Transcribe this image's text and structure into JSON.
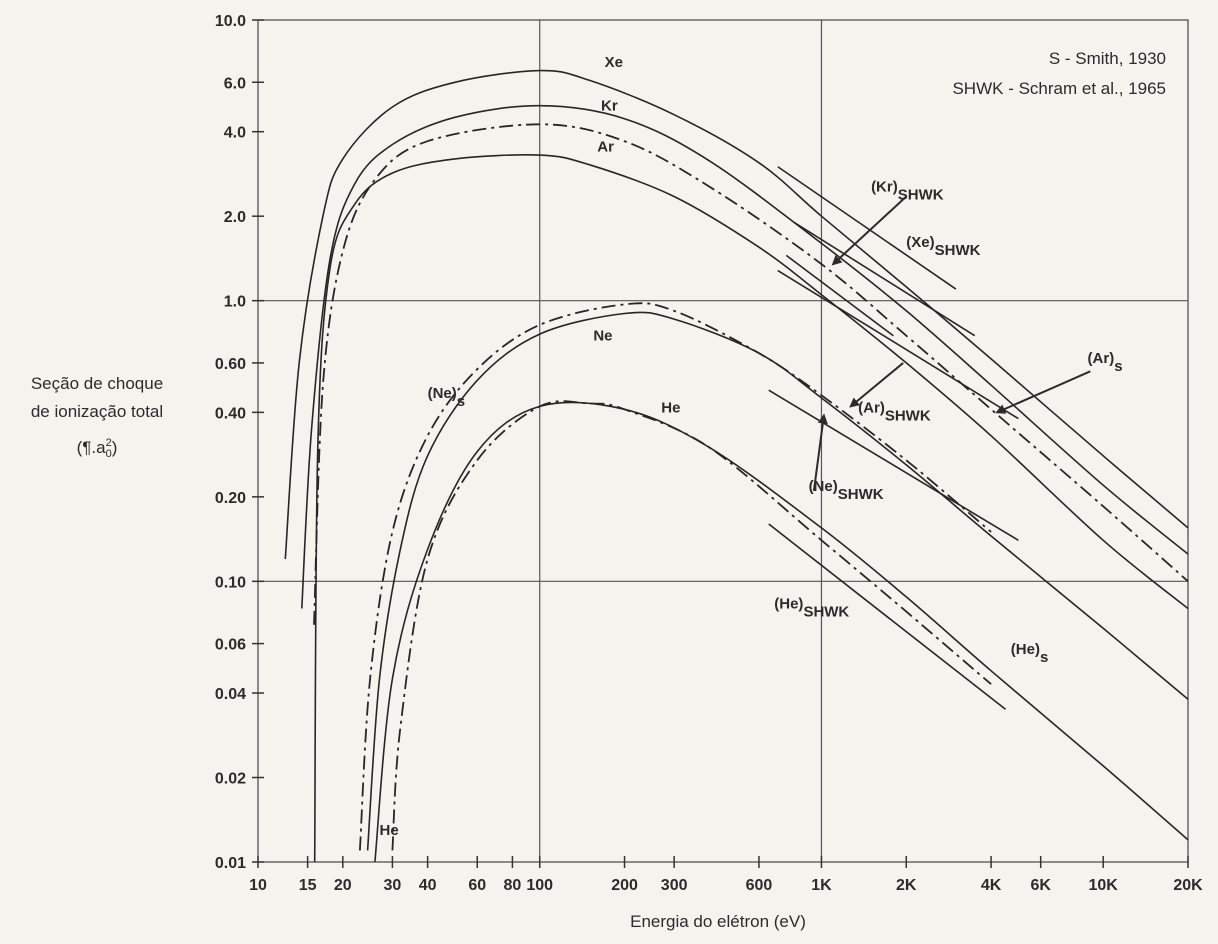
{
  "chart_data": {
    "type": "line",
    "x_scale": "log",
    "y_scale": "log",
    "xlim": [
      10,
      20000
    ],
    "ylim": [
      0.01,
      10.0
    ],
    "xlabel": "Energia do elétron (eV)",
    "ylabel_lines": [
      "Seção de choque",
      "de ionização total"
    ],
    "ylabel_unit": {
      "base": "(¶.a",
      "sub": "0",
      "sup": "2",
      "close": ")"
    },
    "grid": "major lines at 1.0 and 0.10 (y) and 100 and 1K (x)",
    "x_ticks": [
      {
        "v": 10,
        "label": "10"
      },
      {
        "v": 15,
        "label": "15"
      },
      {
        "v": 20,
        "label": "20"
      },
      {
        "v": 30,
        "label": "30"
      },
      {
        "v": 40,
        "label": "40"
      },
      {
        "v": 60,
        "label": "60"
      },
      {
        "v": 80,
        "label": "80"
      },
      {
        "v": 100,
        "label": "100"
      },
      {
        "v": 200,
        "label": "200"
      },
      {
        "v": 300,
        "label": "300"
      },
      {
        "v": 600,
        "label": "600"
      },
      {
        "v": 1000,
        "label": "1K"
      },
      {
        "v": 2000,
        "label": "2K"
      },
      {
        "v": 4000,
        "label": "4K"
      },
      {
        "v": 6000,
        "label": "6K"
      },
      {
        "v": 10000,
        "label": "10K"
      },
      {
        "v": 20000,
        "label": "20K"
      }
    ],
    "y_ticks": [
      {
        "v": 10,
        "label": "10.0"
      },
      {
        "v": 6,
        "label": "6.0"
      },
      {
        "v": 4,
        "label": "4.0"
      },
      {
        "v": 2,
        "label": "2.0"
      },
      {
        "v": 1,
        "label": "1.0"
      },
      {
        "v": 0.6,
        "label": "0.60"
      },
      {
        "v": 0.4,
        "label": "0.40"
      },
      {
        "v": 0.2,
        "label": "0.20"
      },
      {
        "v": 0.1,
        "label": "0.10"
      },
      {
        "v": 0.06,
        "label": "0.06"
      },
      {
        "v": 0.04,
        "label": "0.04"
      },
      {
        "v": 0.02,
        "label": "0.02"
      },
      {
        "v": 0.01,
        "label": "0.01"
      }
    ],
    "legend_lines": [
      "S - Smith, 1930",
      "SHWK - Schram et al., 1965"
    ],
    "legend_placement": "top-right",
    "series": [
      {
        "id": "xe-s",
        "style": "solid",
        "points": [
          [
            12.5,
            0.12
          ],
          [
            14,
            0.6
          ],
          [
            17,
            2.0
          ],
          [
            20,
            3.2
          ],
          [
            30,
            4.9
          ],
          [
            50,
            6.0
          ],
          [
            100,
            6.6
          ],
          [
            150,
            6.1
          ],
          [
            300,
            4.6
          ],
          [
            600,
            3.1
          ],
          [
            1000,
            2.0
          ],
          [
            2000,
            1.12
          ],
          [
            4000,
            0.62
          ],
          [
            10000,
            0.28
          ],
          [
            20000,
            0.155
          ]
        ]
      },
      {
        "id": "kr-s",
        "style": "solid",
        "points": [
          [
            14.3,
            0.08
          ],
          [
            15.5,
            0.35
          ],
          [
            18,
            1.4
          ],
          [
            22,
            2.6
          ],
          [
            30,
            3.6
          ],
          [
            50,
            4.5
          ],
          [
            100,
            4.95
          ],
          [
            200,
            4.45
          ],
          [
            400,
            3.15
          ],
          [
            1000,
            1.6
          ],
          [
            2000,
            0.92
          ],
          [
            4000,
            0.5
          ],
          [
            10000,
            0.22
          ],
          [
            20000,
            0.125
          ]
        ]
      },
      {
        "id": "ar-s",
        "style": "dashdot",
        "points": [
          [
            15.8,
            0.07
          ],
          [
            17,
            0.5
          ],
          [
            20,
            1.5
          ],
          [
            26,
            2.7
          ],
          [
            40,
            3.7
          ],
          [
            100,
            4.25
          ],
          [
            200,
            3.7
          ],
          [
            400,
            2.55
          ],
          [
            1000,
            1.35
          ],
          [
            2000,
            0.75
          ],
          [
            4000,
            0.41
          ],
          [
            10000,
            0.185
          ],
          [
            20000,
            0.1
          ]
        ]
      },
      {
        "id": "ar-smith-solid",
        "style": "solid",
        "points": [
          [
            15.9,
            0.01
          ],
          [
            16.3,
            0.3
          ],
          [
            18,
            1.3
          ],
          [
            22,
            2.2
          ],
          [
            30,
            2.85
          ],
          [
            50,
            3.2
          ],
          [
            100,
            3.3
          ],
          [
            150,
            3.05
          ],
          [
            300,
            2.35
          ],
          [
            600,
            1.55
          ],
          [
            1000,
            1.05
          ],
          [
            2000,
            0.6
          ],
          [
            4000,
            0.33
          ],
          [
            10000,
            0.14
          ],
          [
            20000,
            0.08
          ]
        ]
      },
      {
        "id": "ne-s",
        "style": "dashdot",
        "points": [
          [
            23,
            0.011
          ],
          [
            25,
            0.045
          ],
          [
            30,
            0.15
          ],
          [
            40,
            0.33
          ],
          [
            60,
            0.57
          ],
          [
            100,
            0.82
          ],
          [
            200,
            0.97
          ],
          [
            300,
            0.92
          ],
          [
            600,
            0.65
          ],
          [
            1000,
            0.46
          ],
          [
            2000,
            0.27
          ],
          [
            4000,
            0.15
          ]
        ]
      },
      {
        "id": "ne",
        "style": "solid",
        "points": [
          [
            24.5,
            0.011
          ],
          [
            27,
            0.045
          ],
          [
            32,
            0.13
          ],
          [
            40,
            0.28
          ],
          [
            60,
            0.52
          ],
          [
            100,
            0.76
          ],
          [
            200,
            0.9
          ],
          [
            300,
            0.86
          ],
          [
            600,
            0.65
          ],
          [
            1000,
            0.45
          ],
          [
            2000,
            0.26
          ],
          [
            4000,
            0.145
          ],
          [
            10000,
            0.068
          ],
          [
            20000,
            0.038
          ]
        ]
      },
      {
        "id": "he-s",
        "style": "dashdot",
        "points": [
          [
            30,
            0.011
          ],
          [
            32,
            0.03
          ],
          [
            40,
            0.12
          ],
          [
            60,
            0.27
          ],
          [
            100,
            0.42
          ],
          [
            150,
            0.43
          ],
          [
            200,
            0.41
          ],
          [
            400,
            0.3
          ],
          [
            1000,
            0.14
          ],
          [
            2000,
            0.078
          ],
          [
            4000,
            0.043
          ]
        ]
      },
      {
        "id": "he",
        "style": "solid",
        "points": [
          [
            26,
            0.01
          ],
          [
            30,
            0.045
          ],
          [
            40,
            0.13
          ],
          [
            60,
            0.29
          ],
          [
            100,
            0.42
          ],
          [
            200,
            0.41
          ],
          [
            400,
            0.3
          ],
          [
            1000,
            0.155
          ],
          [
            2000,
            0.088
          ],
          [
            4000,
            0.048
          ],
          [
            10000,
            0.022
          ],
          [
            20000,
            0.012
          ]
        ]
      },
      {
        "id": "xe-shwk",
        "style": "solid",
        "points": [
          [
            700,
            3.0
          ],
          [
            3000,
            1.1
          ]
        ]
      },
      {
        "id": "kr-shwk",
        "style": "solid",
        "points": [
          [
            800,
            1.9
          ],
          [
            3500,
            0.75
          ]
        ]
      },
      {
        "id": "ar-shwk-a",
        "style": "solid",
        "points": [
          [
            750,
            1.45
          ],
          [
            1800,
            0.75
          ]
        ]
      },
      {
        "id": "ar-shwk-b",
        "style": "solid",
        "points": [
          [
            700,
            1.28
          ],
          [
            5000,
            0.38
          ]
        ]
      },
      {
        "id": "ne-shwk",
        "style": "solid",
        "points": [
          [
            650,
            0.48
          ],
          [
            5000,
            0.14
          ]
        ]
      },
      {
        "id": "he-shwk",
        "style": "solid",
        "points": [
          [
            650,
            0.16
          ],
          [
            4500,
            0.035
          ]
        ]
      }
    ],
    "annotations": [
      {
        "text": "Xe",
        "x": 170,
        "y": 6.8
      },
      {
        "text": "Kr",
        "x": 165,
        "y": 4.75
      },
      {
        "text": "Ar",
        "x": 160,
        "y": 3.4
      },
      {
        "text": "Ne",
        "x": 155,
        "y": 0.72
      },
      {
        "text": "He",
        "x": 270,
        "y": 0.4
      },
      {
        "text": "He",
        "x": 27,
        "y": 0.0125
      },
      {
        "text": "(Ne)",
        "sub": "s",
        "x": 40,
        "y": 0.45
      },
      {
        "text": "(Kr)",
        "sub": "SHWK",
        "x": 1500,
        "y": 2.45
      },
      {
        "text": "(Xe)",
        "sub": "SHWK",
        "x": 2000,
        "y": 1.55
      },
      {
        "text": "(Ar)",
        "sub": "s",
        "x": 8800,
        "y": 0.6
      },
      {
        "text": "(Ar)",
        "sub": "SHWK",
        "x": 1350,
        "y": 0.4
      },
      {
        "text": "(Ne)",
        "sub": "SHWK",
        "x": 900,
        "y": 0.21
      },
      {
        "text": "(He)",
        "sub": "SHWK",
        "x": 680,
        "y": 0.08
      },
      {
        "text": "(He)",
        "sub": "s",
        "x": 4700,
        "y": 0.055
      }
    ],
    "arrows": [
      {
        "from": [
          2000,
          2.35
        ],
        "to": [
          1100,
          1.35
        ]
      },
      {
        "from": [
          9000,
          0.56
        ],
        "to": [
          4200,
          0.4
        ]
      },
      {
        "from": [
          1950,
          0.6
        ],
        "to": [
          1270,
          0.42
        ]
      },
      {
        "from": [
          940,
          0.21
        ],
        "to": [
          1020,
          0.39
        ]
      }
    ]
  }
}
